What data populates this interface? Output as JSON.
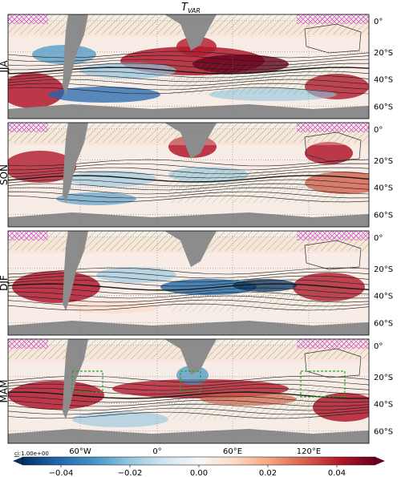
{
  "figure": {
    "title_main": "T",
    "title_sub": "VAR"
  },
  "panels": [
    {
      "season": "JJA"
    },
    {
      "season": "SON"
    },
    {
      "season": "DJF"
    },
    {
      "season": "MAM"
    }
  ],
  "lat_labels": [
    "0°",
    "20°S",
    "40°S",
    "60°S"
  ],
  "lon_labels": [
    "60°W",
    "0°",
    "60°E",
    "120°E"
  ],
  "colorbar": {
    "tick_labels": [
      "−0.04",
      "−0.02",
      "0.00",
      "0.02",
      "0.04"
    ],
    "ci_label": "ci",
    "ci_value": ":1.00e+00",
    "colors": [
      "#053061",
      "#2166ac",
      "#4393c3",
      "#92c5de",
      "#d1e5f0",
      "#f7f7f7",
      "#fddbc7",
      "#f4a582",
      "#d6604d",
      "#b2182b",
      "#67001f"
    ]
  },
  "colors": {
    "land": "#8c8c8c",
    "hatch_green": "#2ca02c",
    "hatch_magenta": "#d62ad6",
    "contour": "#1a1a1a",
    "box_dashed": "#2ca02c"
  }
}
